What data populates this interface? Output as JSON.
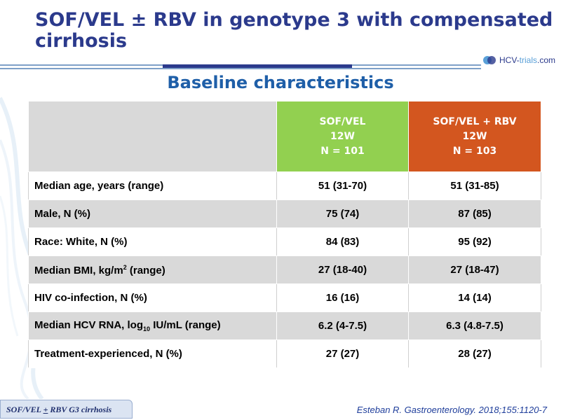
{
  "slide": {
    "title": "SOF/VEL ± RBV in genotype 3 with compensated cirrhosis",
    "subtitle": "Baseline characteristics",
    "logo_prefix": "HCV-",
    "logo_mid": "trials",
    "logo_suffix": ".com"
  },
  "table": {
    "columns": [
      {
        "name": "SOF/VEL",
        "duration": "12W",
        "n": "N = 101",
        "color": "#92d050"
      },
      {
        "name": "SOF/VEL + RBV",
        "duration": "12W",
        "n": "N = 103",
        "color": "#d3561f"
      }
    ],
    "rows": [
      {
        "label": "Median age, years (range)",
        "values": [
          "51 (31-70)",
          "51 (31-85)"
        ]
      },
      {
        "label": "Male, N (%)",
        "values": [
          "75 (74)",
          "87 (85)"
        ]
      },
      {
        "label": "Race: White, N (%)",
        "values": [
          "84 (83)",
          "95 (92)"
        ]
      },
      {
        "label_pre": "Median BMI, kg/m",
        "label_sup": "2",
        "label_post": " (range)",
        "values": [
          "27 (18-40)",
          "27 (18-47)"
        ]
      },
      {
        "label": "HIV co-infection, N (%)",
        "values": [
          "16 (16)",
          "14 (14)"
        ]
      },
      {
        "label_pre": "Median HCV RNA, log",
        "label_sub": "10",
        "label_post": " IU/mL (range)",
        "values": [
          "6.2 (4-7.5)",
          "6.3 (4.8-7.5)"
        ]
      },
      {
        "label": "Treatment-experienced, N (%)",
        "values": [
          "27 (27)",
          "28 (27)"
        ]
      }
    ]
  },
  "footer": {
    "tab_pre": "SOF/VEL ",
    "tab_pm": "+",
    "tab_post": "  RBV G3 cirrhosis",
    "citation": "Esteban R. Gastroenterology. 2018;155:1120-7"
  }
}
